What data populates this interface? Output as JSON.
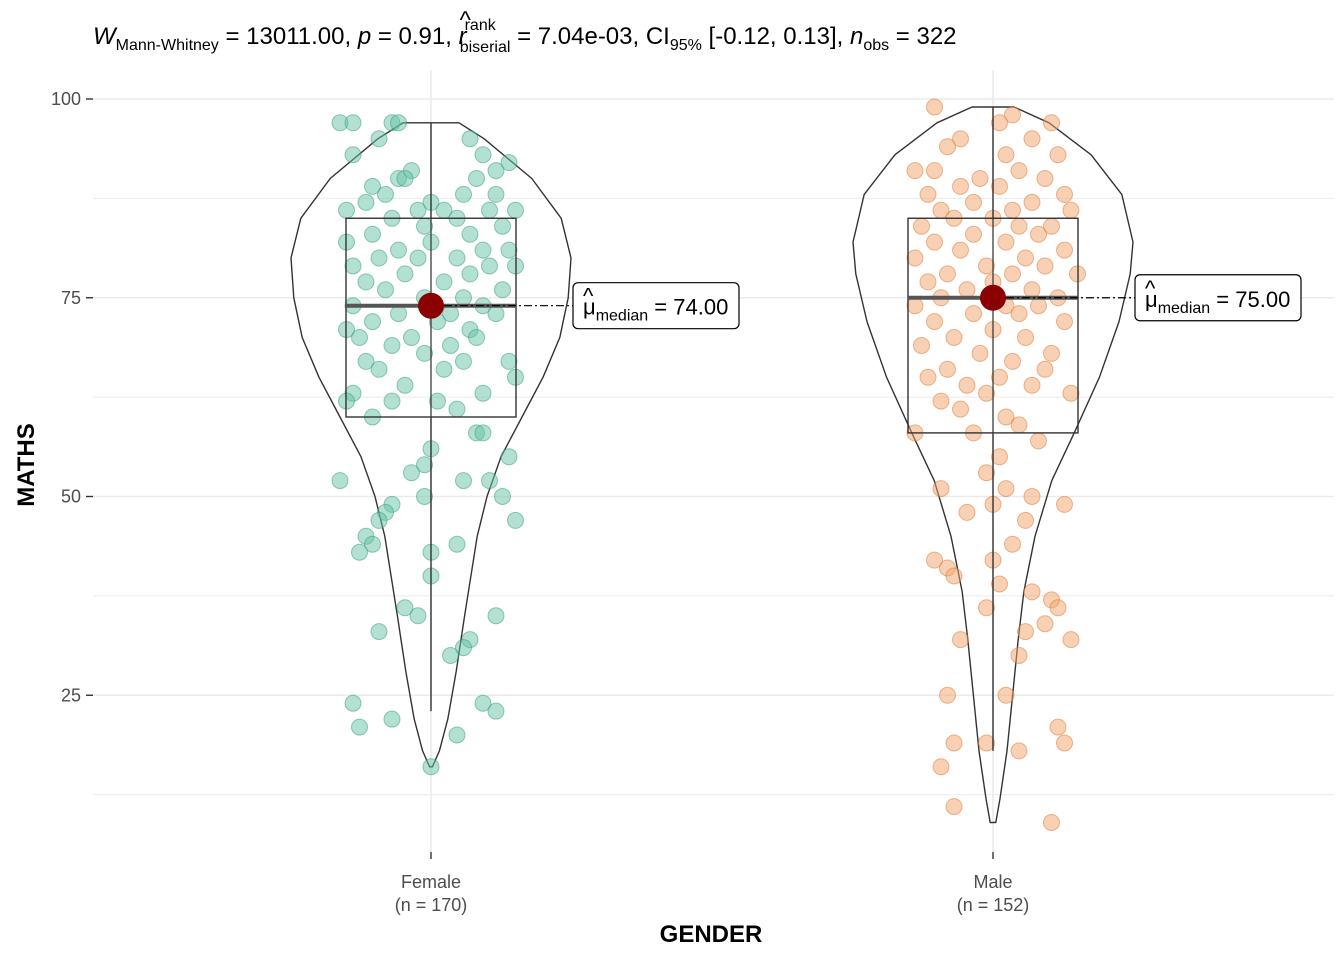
{
  "title": {
    "w_sym": "W",
    "w_sub": "Mann-Whitney",
    "w_val": " = 13011.00, ",
    "p_sym": "p",
    "p_val": " = 0.91, ",
    "r_sym": "r",
    "r_hat": "^",
    "r_sup": "rank",
    "r_sub": "biserial",
    "r_val": " = 7.04e-03, CI",
    "ci_sub": "95%",
    "ci_val": " [-0.12, 0.13], ",
    "n_sym": "n",
    "n_sub": "obs",
    "n_val": " = 322"
  },
  "axes": {
    "x_title": "GENDER",
    "y_title": "MATHS"
  },
  "colors": {
    "female": "#66c2a5",
    "female_edge": "#2e9a78",
    "male": "#f2a36b",
    "male_edge": "#d9742e",
    "median_point": "#8b0000",
    "grid": "#ebebeb",
    "outline": "#333333"
  },
  "chart_data": {
    "type": "violin-box-scatter",
    "ylim": [
      7,
      104
    ],
    "yticks": [
      25,
      50,
      75,
      100
    ],
    "grid": true,
    "groups": [
      {
        "key": "female",
        "name": "Female",
        "n_label": "(n = 170)",
        "median": 74,
        "q1": 60,
        "q3": 85,
        "whisker_low": 23,
        "whisker_high": 97,
        "median_label_sym": "μ",
        "median_label_hat": "^",
        "median_label_sub": "median",
        "median_label_val": " = 74.00",
        "violin_profile": [
          [
            16,
            0.01
          ],
          [
            18,
            0.06
          ],
          [
            22,
            0.12
          ],
          [
            28,
            0.18
          ],
          [
            35,
            0.24
          ],
          [
            45,
            0.33
          ],
          [
            50,
            0.4
          ],
          [
            55,
            0.5
          ],
          [
            60,
            0.65
          ],
          [
            65,
            0.8
          ],
          [
            70,
            0.92
          ],
          [
            75,
            0.98
          ],
          [
            80,
            1.0
          ],
          [
            85,
            0.93
          ],
          [
            90,
            0.72
          ],
          [
            95,
            0.38
          ],
          [
            97,
            0.2
          ]
        ],
        "points": [
          [
            -1.4,
            97
          ],
          [
            -1.2,
            97
          ],
          [
            -0.6,
            97
          ],
          [
            -0.5,
            97
          ],
          [
            0.6,
            95
          ],
          [
            -0.8,
            95
          ],
          [
            0.8,
            93
          ],
          [
            -1.2,
            93
          ],
          [
            1.2,
            92
          ],
          [
            1.0,
            91
          ],
          [
            -0.3,
            91
          ],
          [
            -0.5,
            90
          ],
          [
            0.7,
            90
          ],
          [
            -0.9,
            89
          ],
          [
            -0.7,
            88
          ],
          [
            -0.4,
            90
          ],
          [
            0.5,
            88
          ],
          [
            1.0,
            88
          ],
          [
            -1.0,
            87
          ],
          [
            0.0,
            87
          ],
          [
            0.2,
            86
          ],
          [
            -0.2,
            86
          ],
          [
            0.9,
            86
          ],
          [
            1.3,
            86
          ],
          [
            -1.3,
            86
          ],
          [
            0.4,
            85
          ],
          [
            -0.6,
            85
          ],
          [
            1.1,
            84
          ],
          [
            -0.1,
            84
          ],
          [
            -0.9,
            83
          ],
          [
            0.6,
            83
          ],
          [
            -1.3,
            82
          ],
          [
            0.0,
            82
          ],
          [
            1.2,
            81
          ],
          [
            0.8,
            81
          ],
          [
            -0.5,
            81
          ],
          [
            -0.2,
            80
          ],
          [
            0.4,
            80
          ],
          [
            -0.8,
            80
          ],
          [
            0.9,
            79
          ],
          [
            -1.2,
            79
          ],
          [
            1.3,
            79
          ],
          [
            -0.4,
            78
          ],
          [
            0.6,
            78
          ],
          [
            -1.0,
            77
          ],
          [
            0.2,
            77
          ],
          [
            1.1,
            76
          ],
          [
            -0.7,
            76
          ],
          [
            -0.1,
            75
          ],
          [
            0.5,
            75
          ],
          [
            -1.2,
            74
          ],
          [
            0.8,
            74
          ],
          [
            -0.5,
            73
          ],
          [
            0.3,
            73
          ],
          [
            1.0,
            73
          ],
          [
            -0.9,
            72
          ],
          [
            0.1,
            72
          ],
          [
            -1.3,
            71
          ],
          [
            0.6,
            71
          ],
          [
            -0.3,
            70
          ],
          [
            0.7,
            70
          ],
          [
            -1.1,
            70
          ],
          [
            -0.6,
            69
          ],
          [
            0.3,
            69
          ],
          [
            -0.1,
            68
          ],
          [
            1.2,
            67
          ],
          [
            -1.0,
            67
          ],
          [
            0.5,
            67
          ],
          [
            -0.8,
            66
          ],
          [
            0.2,
            66
          ],
          [
            1.3,
            65
          ],
          [
            -0.4,
            64
          ],
          [
            0.8,
            63
          ],
          [
            -1.2,
            63
          ],
          [
            -0.6,
            62
          ],
          [
            0.1,
            62
          ],
          [
            -1.3,
            62
          ],
          [
            0.4,
            61
          ],
          [
            -0.9,
            60
          ],
          [
            0.7,
            58
          ],
          [
            0.8,
            58
          ],
          [
            0.0,
            56
          ],
          [
            -0.1,
            54
          ],
          [
            1.2,
            55
          ],
          [
            -0.3,
            53
          ],
          [
            0.5,
            52
          ],
          [
            -1.4,
            52
          ],
          [
            0.9,
            52
          ],
          [
            -0.1,
            50
          ],
          [
            1.1,
            50
          ],
          [
            -0.6,
            49
          ],
          [
            1.3,
            47
          ],
          [
            -0.7,
            48
          ],
          [
            -0.8,
            47
          ],
          [
            -1.0,
            45
          ],
          [
            -0.9,
            44
          ],
          [
            -1.1,
            43
          ],
          [
            0.4,
            44
          ],
          [
            0.0,
            43
          ],
          [
            0.0,
            40
          ],
          [
            -0.4,
            36
          ],
          [
            -0.2,
            35
          ],
          [
            1.0,
            35
          ],
          [
            -0.8,
            33
          ],
          [
            0.6,
            32
          ],
          [
            0.5,
            31
          ],
          [
            0.3,
            30
          ],
          [
            -1.2,
            24
          ],
          [
            0.8,
            24
          ],
          [
            1.0,
            23
          ],
          [
            -0.6,
            22
          ],
          [
            -1.1,
            21
          ],
          [
            0.4,
            20
          ],
          [
            0.0,
            16
          ]
        ]
      },
      {
        "key": "male",
        "name": "Male",
        "n_label": "(n = 152)",
        "median": 75,
        "q1": 58,
        "q3": 85,
        "whisker_low": 18,
        "whisker_high": 99,
        "median_label_sym": "μ",
        "median_label_hat": "^",
        "median_label_sub": "median",
        "median_label_val": " = 75.00",
        "violin_profile": [
          [
            9,
            0.02
          ],
          [
            12,
            0.05
          ],
          [
            18,
            0.1
          ],
          [
            25,
            0.14
          ],
          [
            32,
            0.18
          ],
          [
            38,
            0.22
          ],
          [
            45,
            0.3
          ],
          [
            52,
            0.42
          ],
          [
            58,
            0.58
          ],
          [
            65,
            0.76
          ],
          [
            72,
            0.9
          ],
          [
            78,
            0.98
          ],
          [
            82,
            1.0
          ],
          [
            88,
            0.92
          ],
          [
            93,
            0.7
          ],
          [
            97,
            0.4
          ],
          [
            99,
            0.15
          ]
        ],
        "points": [
          [
            -0.9,
            99
          ],
          [
            0.3,
            98
          ],
          [
            0.1,
            97
          ],
          [
            0.9,
            97
          ],
          [
            -0.5,
            95
          ],
          [
            0.6,
            95
          ],
          [
            -0.7,
            94
          ],
          [
            1.0,
            93
          ],
          [
            0.2,
            93
          ],
          [
            -1.2,
            91
          ],
          [
            -0.9,
            91
          ],
          [
            0.4,
            91
          ],
          [
            -0.2,
            90
          ],
          [
            0.8,
            90
          ],
          [
            -0.5,
            89
          ],
          [
            0.1,
            89
          ],
          [
            1.1,
            88
          ],
          [
            -1.0,
            88
          ],
          [
            0.6,
            87
          ],
          [
            -0.3,
            87
          ],
          [
            0.3,
            86
          ],
          [
            -0.8,
            86
          ],
          [
            1.2,
            86
          ],
          [
            0.0,
            85
          ],
          [
            -0.6,
            85
          ],
          [
            0.9,
            84
          ],
          [
            -1.1,
            84
          ],
          [
            0.4,
            84
          ],
          [
            -0.3,
            83
          ],
          [
            0.7,
            83
          ],
          [
            -0.9,
            82
          ],
          [
            0.2,
            82
          ],
          [
            1.1,
            81
          ],
          [
            -0.5,
            81
          ],
          [
            0.5,
            80
          ],
          [
            -1.2,
            80
          ],
          [
            -0.1,
            79
          ],
          [
            0.8,
            79
          ],
          [
            -0.7,
            78
          ],
          [
            0.3,
            78
          ],
          [
            1.3,
            78
          ],
          [
            -1.0,
            77
          ],
          [
            0.0,
            77
          ],
          [
            0.6,
            76
          ],
          [
            -0.4,
            76
          ],
          [
            1.0,
            75
          ],
          [
            -0.8,
            75
          ],
          [
            0.2,
            74
          ],
          [
            -1.2,
            74
          ],
          [
            0.7,
            74
          ],
          [
            -0.3,
            73
          ],
          [
            0.4,
            73
          ],
          [
            -0.9,
            72
          ],
          [
            1.1,
            72
          ],
          [
            0.0,
            71
          ],
          [
            -0.6,
            70
          ],
          [
            0.5,
            70
          ],
          [
            -1.1,
            69
          ],
          [
            0.9,
            68
          ],
          [
            -0.2,
            68
          ],
          [
            0.3,
            67
          ],
          [
            -0.7,
            66
          ],
          [
            0.8,
            66
          ],
          [
            -1.0,
            65
          ],
          [
            0.1,
            65
          ],
          [
            -0.4,
            64
          ],
          [
            0.6,
            64
          ],
          [
            -0.1,
            63
          ],
          [
            1.2,
            63
          ],
          [
            -0.8,
            62
          ],
          [
            -0.5,
            61
          ],
          [
            0.2,
            60
          ],
          [
            0.4,
            59
          ],
          [
            -0.3,
            58
          ],
          [
            -1.2,
            58
          ],
          [
            0.7,
            57
          ],
          [
            0.1,
            55
          ],
          [
            -0.1,
            53
          ],
          [
            0.2,
            51
          ],
          [
            -0.8,
            51
          ],
          [
            0.6,
            50
          ],
          [
            0.0,
            49
          ],
          [
            1.1,
            49
          ],
          [
            -0.4,
            48
          ],
          [
            0.5,
            47
          ],
          [
            0.3,
            44
          ],
          [
            0.0,
            42
          ],
          [
            -0.9,
            42
          ],
          [
            -0.7,
            41
          ],
          [
            -0.6,
            40
          ],
          [
            0.1,
            39
          ],
          [
            0.6,
            38
          ],
          [
            0.9,
            37
          ],
          [
            1.0,
            36
          ],
          [
            -0.1,
            36
          ],
          [
            0.8,
            34
          ],
          [
            0.5,
            33
          ],
          [
            -0.5,
            32
          ],
          [
            1.2,
            32
          ],
          [
            0.4,
            30
          ],
          [
            -0.7,
            25
          ],
          [
            0.2,
            25
          ],
          [
            -0.6,
            19
          ],
          [
            -0.1,
            19
          ],
          [
            0.4,
            18
          ],
          [
            1.0,
            21
          ],
          [
            1.1,
            19
          ],
          [
            -0.8,
            16
          ],
          [
            -0.6,
            11
          ],
          [
            0.9,
            9
          ]
        ]
      }
    ]
  }
}
